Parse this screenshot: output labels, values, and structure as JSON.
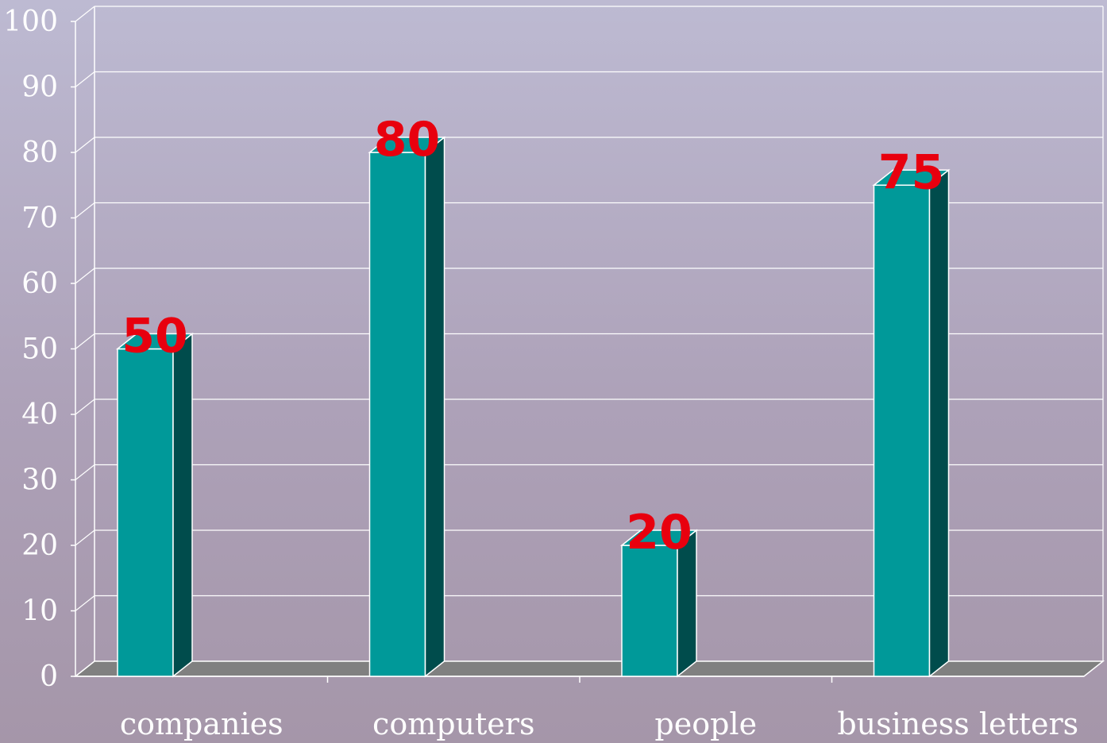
{
  "chart_data": {
    "type": "bar",
    "style": "3d-column",
    "categories": [
      "companies",
      "computers",
      "people",
      "business letters"
    ],
    "values": [
      50,
      80,
      20,
      75
    ],
    "value_labels": [
      "50",
      "80",
      "20",
      "75"
    ],
    "ylim": [
      0,
      100
    ],
    "yticks": [
      0,
      10,
      20,
      30,
      40,
      50,
      60,
      70,
      80,
      90,
      100
    ],
    "ytick_labels": [
      "0",
      "10",
      "20",
      "30",
      "40",
      "50",
      "60",
      "70",
      "80",
      "90",
      "100"
    ],
    "grid": true,
    "legend": "none"
  },
  "colors": {
    "bar_front": "#009999",
    "bar_side": "#004c4c",
    "bar_edge": "#ffffff",
    "floor": "#808080",
    "gridline": "#ffffff",
    "value_label": "#e8000e",
    "text": "#ffffff"
  }
}
